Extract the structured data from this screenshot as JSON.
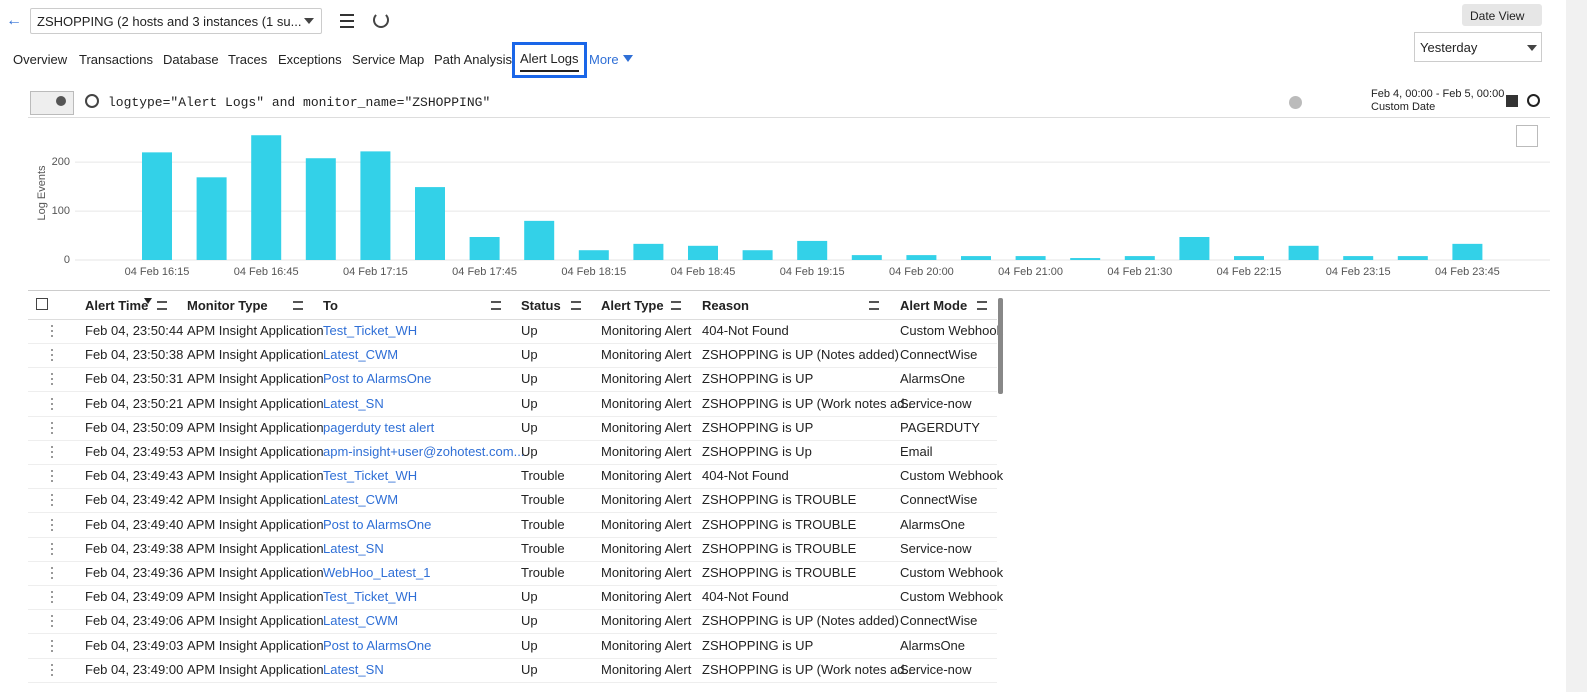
{
  "header": {
    "monitor_select": "ZSHOPPING (2 hosts and 3 instances (1 su...",
    "date_view": "Date View",
    "period": "Yesterday"
  },
  "tabs": [
    "Overview",
    "Transactions",
    "Database",
    "Traces",
    "Exceptions",
    "Service Map",
    "Path Analysis",
    "Alert Logs",
    "More"
  ],
  "query": {
    "text": "logtype=\"Alert Logs\" and monitor_name=\"ZSHOPPING\"",
    "range": "Feb 4, 00:00 - Feb 5, 00:00",
    "range_type": "Custom Date"
  },
  "chart_data": {
    "type": "bar",
    "y_label": "Log Events",
    "color": "#33d1e8",
    "categories": [
      "04 Feb 16:15",
      null,
      "04 Feb 16:45",
      null,
      "04 Feb 17:15",
      null,
      "04 Feb 17:45",
      null,
      "04 Feb 18:15",
      null,
      "04 Feb 18:45",
      null,
      "04 Feb 19:15",
      null,
      "04 Feb 20:00",
      null,
      "04 Feb 21:00",
      null,
      "04 Feb 21:30",
      null,
      "04 Feb 22:15",
      null,
      "04 Feb 23:15",
      null,
      "04 Feb 23:45"
    ],
    "values": [
      220,
      169,
      255,
      208,
      222,
      149,
      47,
      80,
      20,
      33,
      29,
      20,
      39,
      10,
      10,
      8,
      8,
      4,
      8,
      47,
      8,
      29,
      8,
      8,
      33
    ],
    "ylim": [
      0,
      280
    ],
    "yticks": [
      0,
      100,
      200
    ],
    "grid": true
  },
  "table": {
    "columns": [
      "Alert Time",
      "Monitor Type",
      "To",
      "Status",
      "Alert Type",
      "Reason",
      "Alert Mode"
    ],
    "rows": [
      [
        "Feb 04, 23:50:44",
        "APM Insight Application",
        "Test_Ticket_WH",
        "Up",
        "Monitoring Alert",
        "404-Not Found",
        "Custom Webhook"
      ],
      [
        "Feb 04, 23:50:38",
        "APM Insight Application",
        "Latest_CWM",
        "Up",
        "Monitoring Alert",
        "ZSHOPPING is UP (Notes added)",
        "ConnectWise"
      ],
      [
        "Feb 04, 23:50:31",
        "APM Insight Application",
        "Post to AlarmsOne",
        "Up",
        "Monitoring Alert",
        "ZSHOPPING is UP",
        "AlarmsOne"
      ],
      [
        "Feb 04, 23:50:21",
        "APM Insight Application",
        "Latest_SN",
        "Up",
        "Monitoring Alert",
        "ZSHOPPING is UP (Work notes ad...",
        "Service-now"
      ],
      [
        "Feb 04, 23:50:09",
        "APM Insight Application",
        "pagerduty test alert",
        "Up",
        "Monitoring Alert",
        "ZSHOPPING is UP",
        "PAGERDUTY"
      ],
      [
        "Feb 04, 23:49:53",
        "APM Insight Application",
        "apm-insight+user@zohotest.com...",
        "Up",
        "Monitoring Alert",
        "ZSHOPPING is Up",
        "Email"
      ],
      [
        "Feb 04, 23:49:43",
        "APM Insight Application",
        "Test_Ticket_WH",
        "Trouble",
        "Monitoring Alert",
        "404-Not Found",
        "Custom Webhook"
      ],
      [
        "Feb 04, 23:49:42",
        "APM Insight Application",
        "Latest_CWM",
        "Trouble",
        "Monitoring Alert",
        "ZSHOPPING is TROUBLE",
        "ConnectWise"
      ],
      [
        "Feb 04, 23:49:40",
        "APM Insight Application",
        "Post to AlarmsOne",
        "Trouble",
        "Monitoring Alert",
        "ZSHOPPING is TROUBLE",
        "AlarmsOne"
      ],
      [
        "Feb 04, 23:49:38",
        "APM Insight Application",
        "Latest_SN",
        "Trouble",
        "Monitoring Alert",
        "ZSHOPPING is TROUBLE",
        "Service-now"
      ],
      [
        "Feb 04, 23:49:36",
        "APM Insight Application",
        "WebHoo_Latest_1",
        "Trouble",
        "Monitoring Alert",
        "ZSHOPPING is TROUBLE",
        "Custom Webhook"
      ],
      [
        "Feb 04, 23:49:09",
        "APM Insight Application",
        "Test_Ticket_WH",
        "Up",
        "Monitoring Alert",
        "404-Not Found",
        "Custom Webhook"
      ],
      [
        "Feb 04, 23:49:06",
        "APM Insight Application",
        "Latest_CWM",
        "Up",
        "Monitoring Alert",
        "ZSHOPPING is UP (Notes added)",
        "ConnectWise"
      ],
      [
        "Feb 04, 23:49:03",
        "APM Insight Application",
        "Post to AlarmsOne",
        "Up",
        "Monitoring Alert",
        "ZSHOPPING is UP",
        "AlarmsOne"
      ],
      [
        "Feb 04, 23:49:00",
        "APM Insight Application",
        "Latest_SN",
        "Up",
        "Monitoring Alert",
        "ZSHOPPING is UP (Work notes ad...",
        "Service-now"
      ]
    ]
  }
}
